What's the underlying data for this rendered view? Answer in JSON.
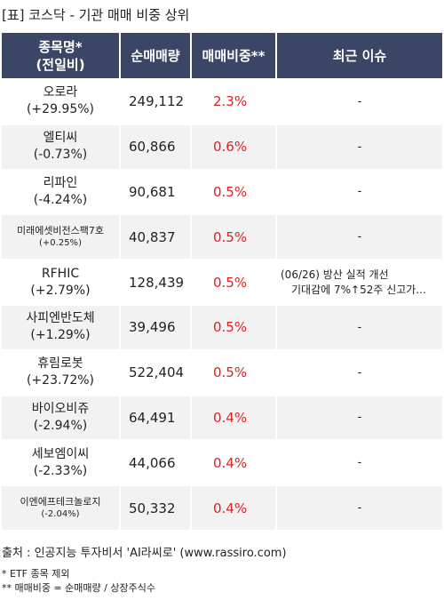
{
  "title": "[표] 코스닥 - 기관 매매 비중 상위",
  "headers": {
    "name_line1": "종목명*",
    "name_line2": "(전일비)",
    "volume": "순매매량",
    "ratio": "매매비중**",
    "issue": "최근 이슈"
  },
  "rows": [
    {
      "name": "오로라",
      "change": "(+29.95%)",
      "volume": "249,112",
      "ratio": "2.3%",
      "issue": "-"
    },
    {
      "name": "엘티씨",
      "change": "(-0.73%)",
      "volume": "60,866",
      "ratio": "0.6%",
      "issue": "-"
    },
    {
      "name": "리파인",
      "change": "(-4.24%)",
      "volume": "90,681",
      "ratio": "0.5%",
      "issue": "-"
    },
    {
      "name": "미래에셋비전스팩7호",
      "change": "(+0.25%)",
      "volume": "40,837",
      "ratio": "0.5%",
      "issue": "-"
    },
    {
      "name": "RFHIC",
      "change": "(+2.79%)",
      "volume": "128,439",
      "ratio": "0.5%",
      "issue_line1": "(06/26) 방산 실적 개선",
      "issue_line2": "기대감에 7%↑52주 신고가..."
    },
    {
      "name": "사피엔반도체",
      "change": "(+1.29%)",
      "volume": "39,496",
      "ratio": "0.5%",
      "issue": "-"
    },
    {
      "name": "휴림로봇",
      "change": "(+23.72%)",
      "volume": "522,404",
      "ratio": "0.5%",
      "issue": "-"
    },
    {
      "name": "바이오비쥬",
      "change": "(-2.94%)",
      "volume": "64,491",
      "ratio": "0.4%",
      "issue": "-"
    },
    {
      "name": "세보엠이씨",
      "change": "(-2.33%)",
      "volume": "44,066",
      "ratio": "0.4%",
      "issue": "-"
    },
    {
      "name": "이엔에프테크놀로지",
      "change": "(-2.04%)",
      "volume": "50,332",
      "ratio": "0.4%",
      "issue": "-"
    }
  ],
  "source": "출처 : 인공지능 투자비서 'AI라씨로' (www.rassiro.com)",
  "note1": "* ETF 종목 제외",
  "note2": "** 매매비중 = 순매매량 / 상장주식수",
  "colors": {
    "header_bg": "#3b4566",
    "ratio_text": "#e02020",
    "stripe": "#f2f2f2"
  }
}
